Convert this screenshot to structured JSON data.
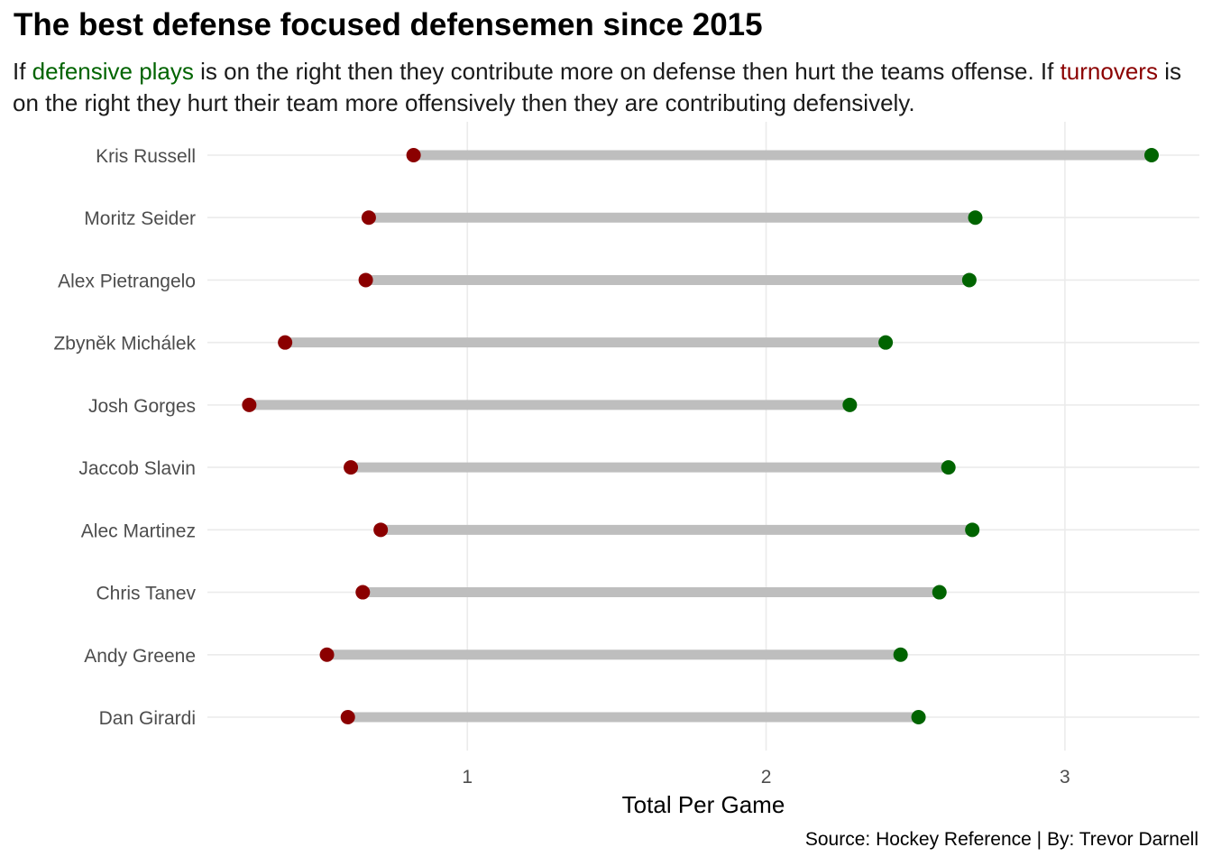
{
  "chart_data": {
    "type": "dumbbell",
    "title": "The best defense focused defensemen since 2015",
    "subtitle": {
      "part1": "If ",
      "highlight1": "defensive plays",
      "part2": " is on the right then they contribute more on defense then hurt the teams offense. If ",
      "highlight2": "turnovers",
      "part3": " is on the right they hurt their team more offensively then they are contributing defensively."
    },
    "xlabel": "Total Per Game",
    "ylabel": "",
    "caption": "Source: Hockey Reference | By: Trevor Darnell",
    "xlim": [
      0.13,
      3.45
    ],
    "xticks": [
      1,
      2,
      3
    ],
    "grid": true,
    "categories": [
      "Kris Russell",
      "Moritz Seider",
      "Alex Pietrangelo",
      "Zbyněk Michálek",
      "Josh Gorges",
      "Jaccob Slavin",
      "Alec Martinez",
      "Chris Tanev",
      "Andy Greene",
      "Dan Girardi"
    ],
    "series": [
      {
        "name": "turnovers",
        "color": "#8b0000",
        "values": [
          0.82,
          0.67,
          0.66,
          0.39,
          0.27,
          0.61,
          0.71,
          0.65,
          0.53,
          0.6
        ]
      },
      {
        "name": "defensive plays",
        "color": "#006400",
        "values": [
          3.29,
          2.7,
          2.68,
          2.4,
          2.28,
          2.61,
          2.69,
          2.58,
          2.45,
          2.51
        ]
      }
    ],
    "colors": {
      "segment": "#bebebe",
      "grid": "#ebebeb",
      "axis_text": "#4d4d4d"
    }
  }
}
